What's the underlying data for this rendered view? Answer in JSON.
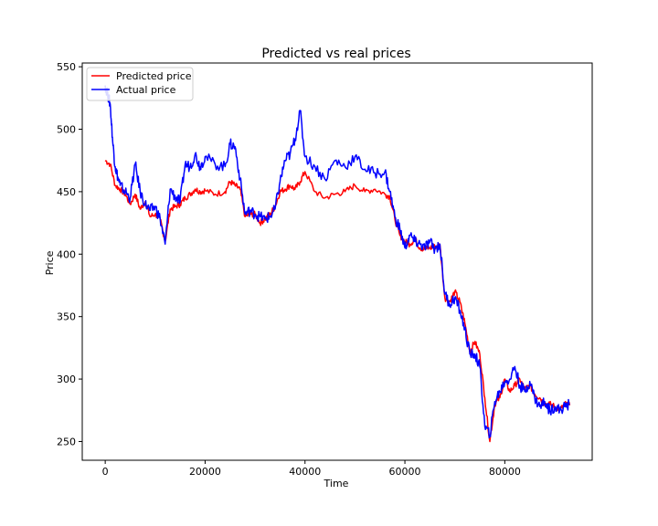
{
  "chart_data": {
    "type": "line",
    "title": "Predicted vs real prices",
    "xlabel": "Time",
    "ylabel": "Price",
    "xlim": [
      -4600,
      97500
    ],
    "ylim": [
      235,
      553
    ],
    "xticks": [
      0,
      20000,
      40000,
      60000,
      80000
    ],
    "xtick_labels": [
      "0",
      "20000",
      "40000",
      "60000",
      "80000"
    ],
    "yticks": [
      250,
      300,
      350,
      400,
      450,
      500,
      550
    ],
    "ytick_labels": [
      "250",
      "300",
      "350",
      "400",
      "450",
      "500",
      "550"
    ],
    "grid": false,
    "legend_position": "top-left",
    "series": [
      {
        "name": "Predicted price",
        "color": "#ff0000",
        "x": [
          0,
          1000,
          2000,
          3000,
          4000,
          5000,
          6000,
          7000,
          8000,
          9000,
          10000,
          11000,
          12000,
          13000,
          14000,
          15000,
          16000,
          17000,
          18000,
          19000,
          20000,
          22000,
          24000,
          25000,
          26000,
          27000,
          28000,
          29000,
          30000,
          31000,
          32000,
          33000,
          34000,
          35000,
          36000,
          37000,
          38000,
          39000,
          40000,
          42000,
          44000,
          46000,
          48000,
          50000,
          52000,
          54000,
          56000,
          57000,
          58000,
          59000,
          60000,
          61000,
          62000,
          63000,
          64000,
          65000,
          66000,
          67000,
          68000,
          69000,
          70000,
          71000,
          72000,
          73000,
          74000,
          75000,
          76000,
          77000,
          78000,
          79000,
          80000,
          81000,
          82000,
          83000,
          84000,
          85000,
          86000,
          87000,
          88000,
          89000,
          90000,
          91000,
          92000,
          93000
        ],
        "values": [
          475,
          472,
          455,
          452,
          448,
          440,
          448,
          436,
          442,
          430,
          432,
          428,
          410,
          436,
          438,
          440,
          445,
          448,
          452,
          450,
          451,
          448,
          450,
          458,
          455,
          452,
          430,
          432,
          432,
          425,
          428,
          432,
          438,
          450,
          452,
          455,
          452,
          458,
          466,
          450,
          445,
          448,
          450,
          455,
          450,
          452,
          448,
          446,
          428,
          415,
          410,
          408,
          412,
          405,
          404,
          405,
          406,
          408,
          365,
          362,
          370,
          362,
          345,
          322,
          330,
          320,
          285,
          250,
          280,
          285,
          300,
          290,
          295,
          300,
          292,
          295,
          288,
          285,
          280,
          280,
          278,
          275,
          280,
          279
        ]
      },
      {
        "name": "Actual price",
        "color": "#0000ff",
        "x": [
          0,
          500,
          1000,
          1500,
          2000,
          2500,
          3000,
          4000,
          5000,
          6000,
          7000,
          8000,
          9000,
          10000,
          11000,
          12000,
          13000,
          14000,
          15000,
          16000,
          17000,
          18000,
          19000,
          20000,
          22000,
          24000,
          25000,
          26000,
          27000,
          28000,
          29000,
          30000,
          31000,
          32000,
          33000,
          34000,
          35000,
          36000,
          37000,
          38000,
          39000,
          40000,
          42000,
          44000,
          46000,
          48000,
          50000,
          52000,
          54000,
          56000,
          57000,
          58000,
          59000,
          60000,
          61000,
          62000,
          63000,
          64000,
          65000,
          66000,
          67000,
          68000,
          69000,
          70000,
          71000,
          72000,
          73000,
          74000,
          75000,
          76000,
          77000,
          78000,
          79000,
          80000,
          81000,
          82000,
          83000,
          84000,
          85000,
          86000,
          87000,
          88000,
          89000,
          90000,
          91000,
          92000,
          93000
        ],
        "values": [
          535,
          528,
          520,
          490,
          470,
          462,
          455,
          450,
          445,
          472,
          450,
          440,
          435,
          438,
          428,
          408,
          452,
          446,
          442,
          472,
          470,
          480,
          470,
          478,
          472,
          470,
          488,
          486,
          460,
          432,
          435,
          432,
          430,
          428,
          430,
          436,
          458,
          475,
          480,
          492,
          515,
          478,
          470,
          460,
          475,
          470,
          478,
          468,
          465,
          466,
          450,
          430,
          420,
          405,
          415,
          410,
          408,
          405,
          410,
          404,
          408,
          368,
          360,
          365,
          355,
          340,
          320,
          320,
          310,
          262,
          255,
          282,
          290,
          298,
          300,
          310,
          295,
          290,
          298,
          285,
          278,
          282,
          275,
          278,
          275,
          278,
          280
        ]
      }
    ]
  }
}
